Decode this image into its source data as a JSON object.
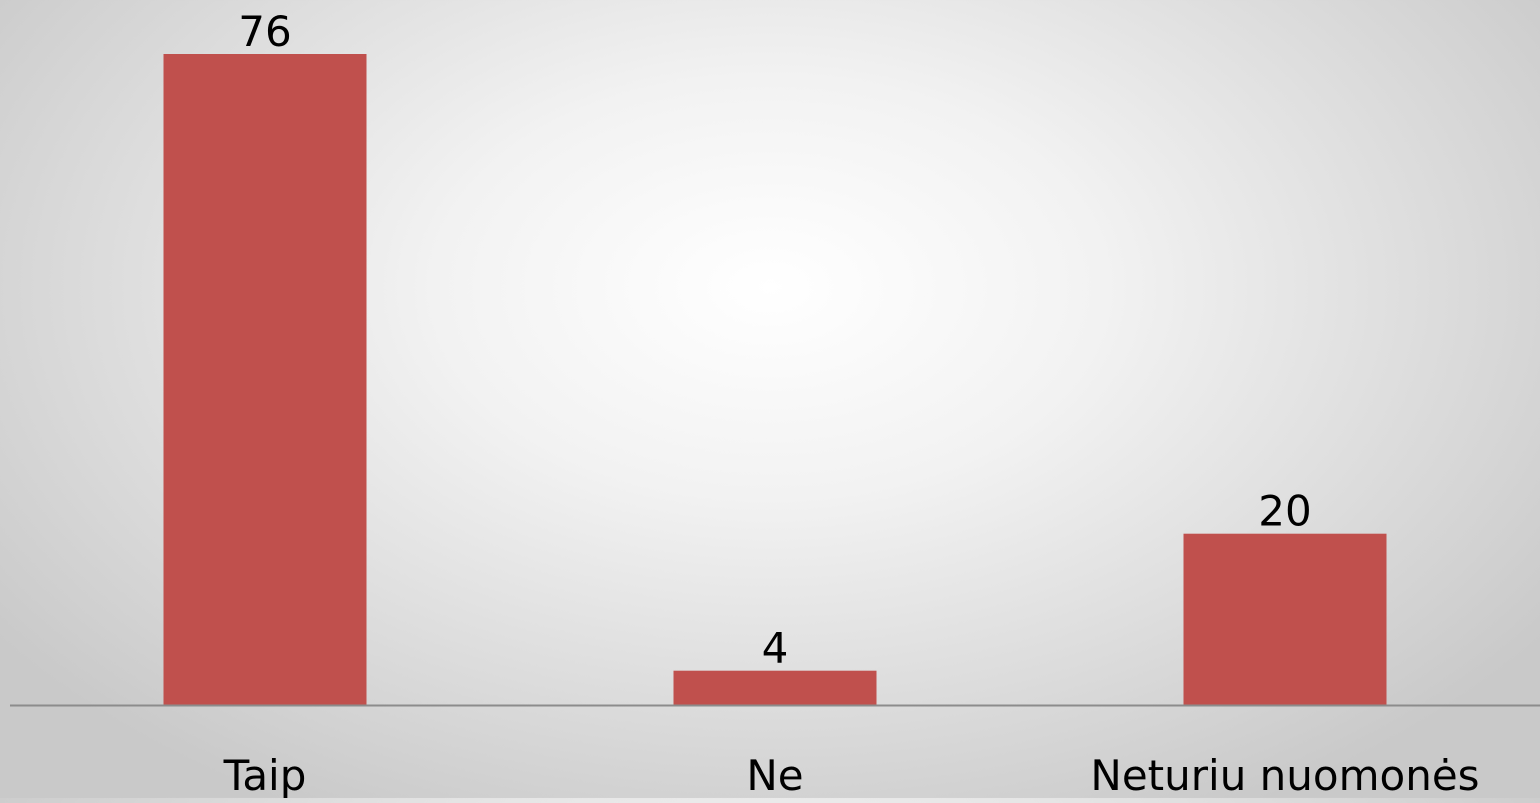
{
  "chart_data": {
    "type": "bar",
    "categories": [
      "Taip",
      "Ne",
      "Neturiu nuomonės"
    ],
    "values": [
      76,
      4,
      20
    ],
    "data_labels": [
      "76",
      "4",
      "20"
    ],
    "title": "",
    "xlabel": "",
    "ylabel": "",
    "ylim": [
      0,
      76
    ],
    "grid": false,
    "legend": "none",
    "colors": {
      "bar": "#c0504d",
      "axis": "#8c8c8c",
      "text": "#000000"
    }
  }
}
